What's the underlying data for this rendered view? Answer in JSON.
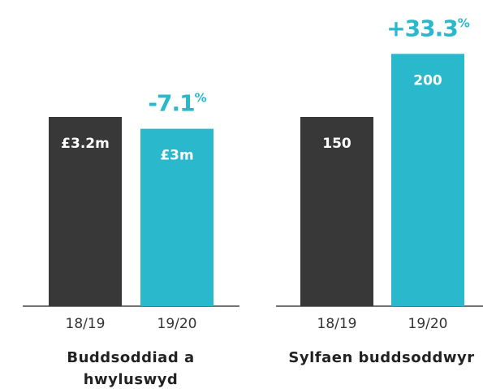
{
  "chart_data": [
    {
      "type": "bar",
      "title": "Buddsoddiad a hwyluswyd",
      "categories": [
        "18/19",
        "19/20"
      ],
      "values": [
        3.2,
        3
      ],
      "value_labels": [
        "£3.2m",
        "£3m"
      ],
      "annotation": "-7.1%",
      "colors": [
        "#383838",
        "#29b8cc"
      ]
    },
    {
      "type": "bar",
      "title": "Sylfaen buddsoddwyr",
      "categories": [
        "18/19",
        "19/20"
      ],
      "values": [
        150,
        200
      ],
      "annotation": "+33.3%",
      "colors": [
        "#383838",
        "#29b8cc"
      ]
    }
  ]
}
